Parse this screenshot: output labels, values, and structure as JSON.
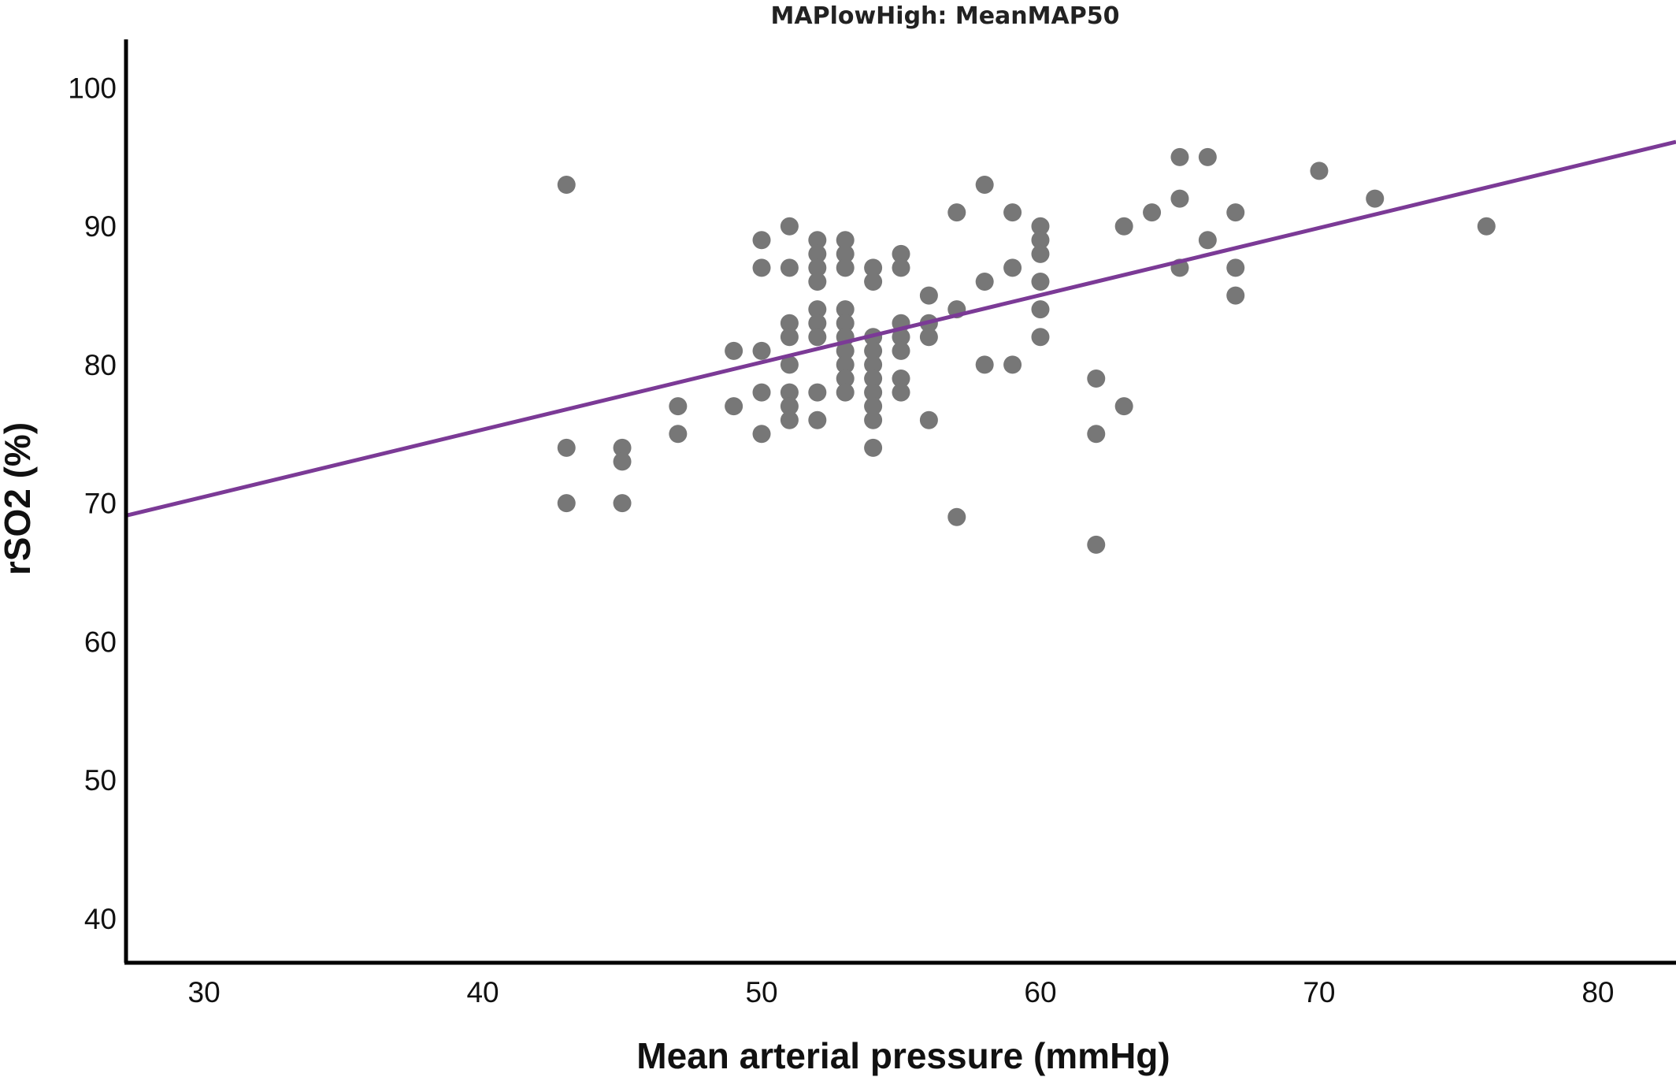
{
  "chart_data": {
    "type": "scatter",
    "title": "MAPlowHigh: MeanMAP50",
    "xlabel": "Mean arterial pressure (mmHg)",
    "ylabel": "rSO2 (%)",
    "xlim": [
      27.2,
      82.8
    ],
    "ylim": [
      36.8,
      103.5
    ],
    "xticks": [
      30,
      40,
      50,
      60,
      70,
      80
    ],
    "yticks": [
      40,
      50,
      60,
      70,
      80,
      90,
      100
    ],
    "grid": false,
    "legend": "none",
    "points": [
      {
        "x": 43,
        "y": 93
      },
      {
        "x": 43,
        "y": 74
      },
      {
        "x": 43,
        "y": 70
      },
      {
        "x": 45,
        "y": 74
      },
      {
        "x": 45,
        "y": 73
      },
      {
        "x": 45,
        "y": 70
      },
      {
        "x": 47,
        "y": 77
      },
      {
        "x": 47,
        "y": 75
      },
      {
        "x": 49,
        "y": 81
      },
      {
        "x": 49,
        "y": 77
      },
      {
        "x": 50,
        "y": 89
      },
      {
        "x": 50,
        "y": 87
      },
      {
        "x": 50,
        "y": 81
      },
      {
        "x": 50,
        "y": 78
      },
      {
        "x": 50,
        "y": 75
      },
      {
        "x": 51,
        "y": 90
      },
      {
        "x": 51,
        "y": 87
      },
      {
        "x": 51,
        "y": 83
      },
      {
        "x": 51,
        "y": 82
      },
      {
        "x": 51,
        "y": 80
      },
      {
        "x": 51,
        "y": 78
      },
      {
        "x": 51,
        "y": 77
      },
      {
        "x": 51,
        "y": 76
      },
      {
        "x": 52,
        "y": 89
      },
      {
        "x": 52,
        "y": 88
      },
      {
        "x": 52,
        "y": 87
      },
      {
        "x": 52,
        "y": 86
      },
      {
        "x": 52,
        "y": 84
      },
      {
        "x": 52,
        "y": 83
      },
      {
        "x": 52,
        "y": 82
      },
      {
        "x": 52,
        "y": 78
      },
      {
        "x": 52,
        "y": 76
      },
      {
        "x": 53,
        "y": 89
      },
      {
        "x": 53,
        "y": 88
      },
      {
        "x": 53,
        "y": 87
      },
      {
        "x": 53,
        "y": 84
      },
      {
        "x": 53,
        "y": 83
      },
      {
        "x": 53,
        "y": 82
      },
      {
        "x": 53,
        "y": 81
      },
      {
        "x": 53,
        "y": 80
      },
      {
        "x": 53,
        "y": 79
      },
      {
        "x": 53,
        "y": 78
      },
      {
        "x": 54,
        "y": 87
      },
      {
        "x": 54,
        "y": 86
      },
      {
        "x": 54,
        "y": 82
      },
      {
        "x": 54,
        "y": 81
      },
      {
        "x": 54,
        "y": 80
      },
      {
        "x": 54,
        "y": 79
      },
      {
        "x": 54,
        "y": 78
      },
      {
        "x": 54,
        "y": 77
      },
      {
        "x": 54,
        "y": 76
      },
      {
        "x": 54,
        "y": 74
      },
      {
        "x": 55,
        "y": 88
      },
      {
        "x": 55,
        "y": 87
      },
      {
        "x": 55,
        "y": 83
      },
      {
        "x": 55,
        "y": 82
      },
      {
        "x": 55,
        "y": 81
      },
      {
        "x": 55,
        "y": 79
      },
      {
        "x": 55,
        "y": 78
      },
      {
        "x": 56,
        "y": 85
      },
      {
        "x": 56,
        "y": 83
      },
      {
        "x": 56,
        "y": 82
      },
      {
        "x": 56,
        "y": 76
      },
      {
        "x": 57,
        "y": 91
      },
      {
        "x": 57,
        "y": 84
      },
      {
        "x": 57,
        "y": 69
      },
      {
        "x": 58,
        "y": 93
      },
      {
        "x": 58,
        "y": 86
      },
      {
        "x": 58,
        "y": 80
      },
      {
        "x": 59,
        "y": 91
      },
      {
        "x": 59,
        "y": 87
      },
      {
        "x": 59,
        "y": 80
      },
      {
        "x": 60,
        "y": 90
      },
      {
        "x": 60,
        "y": 89
      },
      {
        "x": 60,
        "y": 88
      },
      {
        "x": 60,
        "y": 86
      },
      {
        "x": 60,
        "y": 84
      },
      {
        "x": 60,
        "y": 82
      },
      {
        "x": 62,
        "y": 79
      },
      {
        "x": 62,
        "y": 75
      },
      {
        "x": 62,
        "y": 67
      },
      {
        "x": 63,
        "y": 90
      },
      {
        "x": 63,
        "y": 77
      },
      {
        "x": 64,
        "y": 91
      },
      {
        "x": 65,
        "y": 95
      },
      {
        "x": 65,
        "y": 92
      },
      {
        "x": 65,
        "y": 87
      },
      {
        "x": 66,
        "y": 95
      },
      {
        "x": 66,
        "y": 89
      },
      {
        "x": 67,
        "y": 91
      },
      {
        "x": 67,
        "y": 87
      },
      {
        "x": 67,
        "y": 85
      },
      {
        "x": 70,
        "y": 94
      },
      {
        "x": 72,
        "y": 92
      },
      {
        "x": 76,
        "y": 90
      }
    ],
    "fit_line": {
      "x": [
        27.2,
        82.8
      ],
      "y": [
        69.1,
        96.1
      ]
    },
    "colors": {
      "points": "#777777",
      "fit_line": "#7b3a96",
      "axes": "#000000"
    }
  }
}
